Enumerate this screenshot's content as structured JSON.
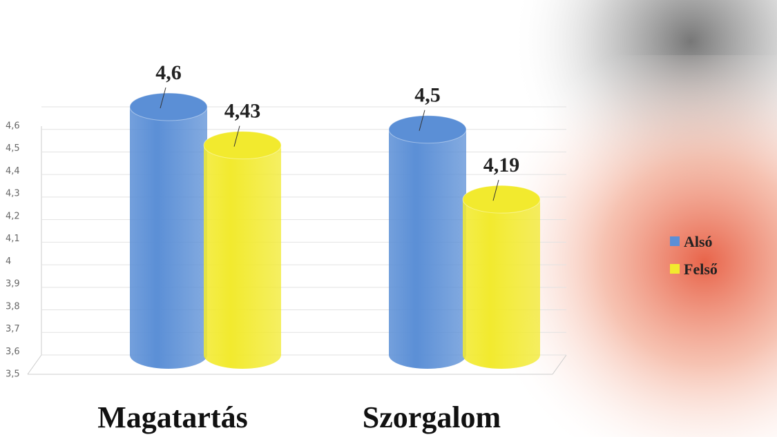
{
  "chart_data": {
    "type": "bar",
    "categories": [
      "Magatartás",
      "Szorgalom"
    ],
    "series": [
      {
        "name": "Alsó",
        "color": "#5b8fd6",
        "values": [
          4.6,
          4.5
        ],
        "value_labels": [
          "4,6",
          "4,5"
        ]
      },
      {
        "name": "Felső",
        "color": "#f2ea2e",
        "values": [
          4.43,
          4.19
        ],
        "value_labels": [
          "4,43",
          "4,19"
        ]
      }
    ],
    "ylim": [
      3.5,
      4.6
    ],
    "yticks": [
      {
        "value": 3.5,
        "label": "3,5"
      },
      {
        "value": 3.6,
        "label": "3,6"
      },
      {
        "value": 3.7,
        "label": "3,7"
      },
      {
        "value": 3.8,
        "label": "3,8"
      },
      {
        "value": 3.9,
        "label": "3,9"
      },
      4,
      {
        "value": 4.1,
        "label": "4,1"
      },
      {
        "value": 4.2,
        "label": "4,2"
      },
      {
        "value": 4.3,
        "label": "4,3"
      },
      {
        "value": 4.4,
        "label": "4,4"
      },
      {
        "value": 4.5,
        "label": "4,5"
      },
      {
        "value": 4.6,
        "label": "4,6"
      }
    ],
    "grid": true,
    "legend": "right"
  }
}
